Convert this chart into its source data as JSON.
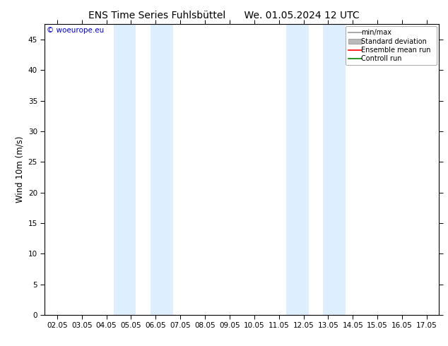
{
  "title_left": "ENS Time Series Fuhlsbüttel",
  "title_right": "We. 01.05.2024 12 UTC",
  "ylabel": "Wind 10m (m/s)",
  "ylim": [
    0,
    47.5
  ],
  "yticks": [
    0,
    5,
    10,
    15,
    20,
    25,
    30,
    35,
    40,
    45
  ],
  "xtick_labels": [
    "02.05",
    "03.05",
    "04.05",
    "05.05",
    "06.05",
    "07.05",
    "08.05",
    "09.05",
    "10.05",
    "11.05",
    "12.05",
    "13.05",
    "14.05",
    "15.05",
    "16.05",
    "17.05"
  ],
  "xlim": [
    -0.5,
    15.5
  ],
  "blue_bands": [
    [
      2.3,
      3.2
    ],
    [
      3.8,
      4.7
    ],
    [
      9.3,
      10.2
    ],
    [
      10.8,
      11.7
    ]
  ],
  "band_color": "#ddeeff",
  "background_color": "#ffffff",
  "watermark_text": "© woeurope.eu",
  "watermark_color": "#0000cc",
  "legend_entries": [
    {
      "label": "min/max",
      "color": "#999999",
      "lw": 1.2
    },
    {
      "label": "Standard deviation",
      "color": "#bbbbbb",
      "lw": 5
    },
    {
      "label": "Ensemble mean run",
      "color": "#ff0000",
      "lw": 1.2
    },
    {
      "label": "Controll run",
      "color": "#008800",
      "lw": 1.2
    }
  ],
  "title_fontsize": 10,
  "tick_fontsize": 7.5,
  "ylabel_fontsize": 8.5,
  "legend_fontsize": 7
}
